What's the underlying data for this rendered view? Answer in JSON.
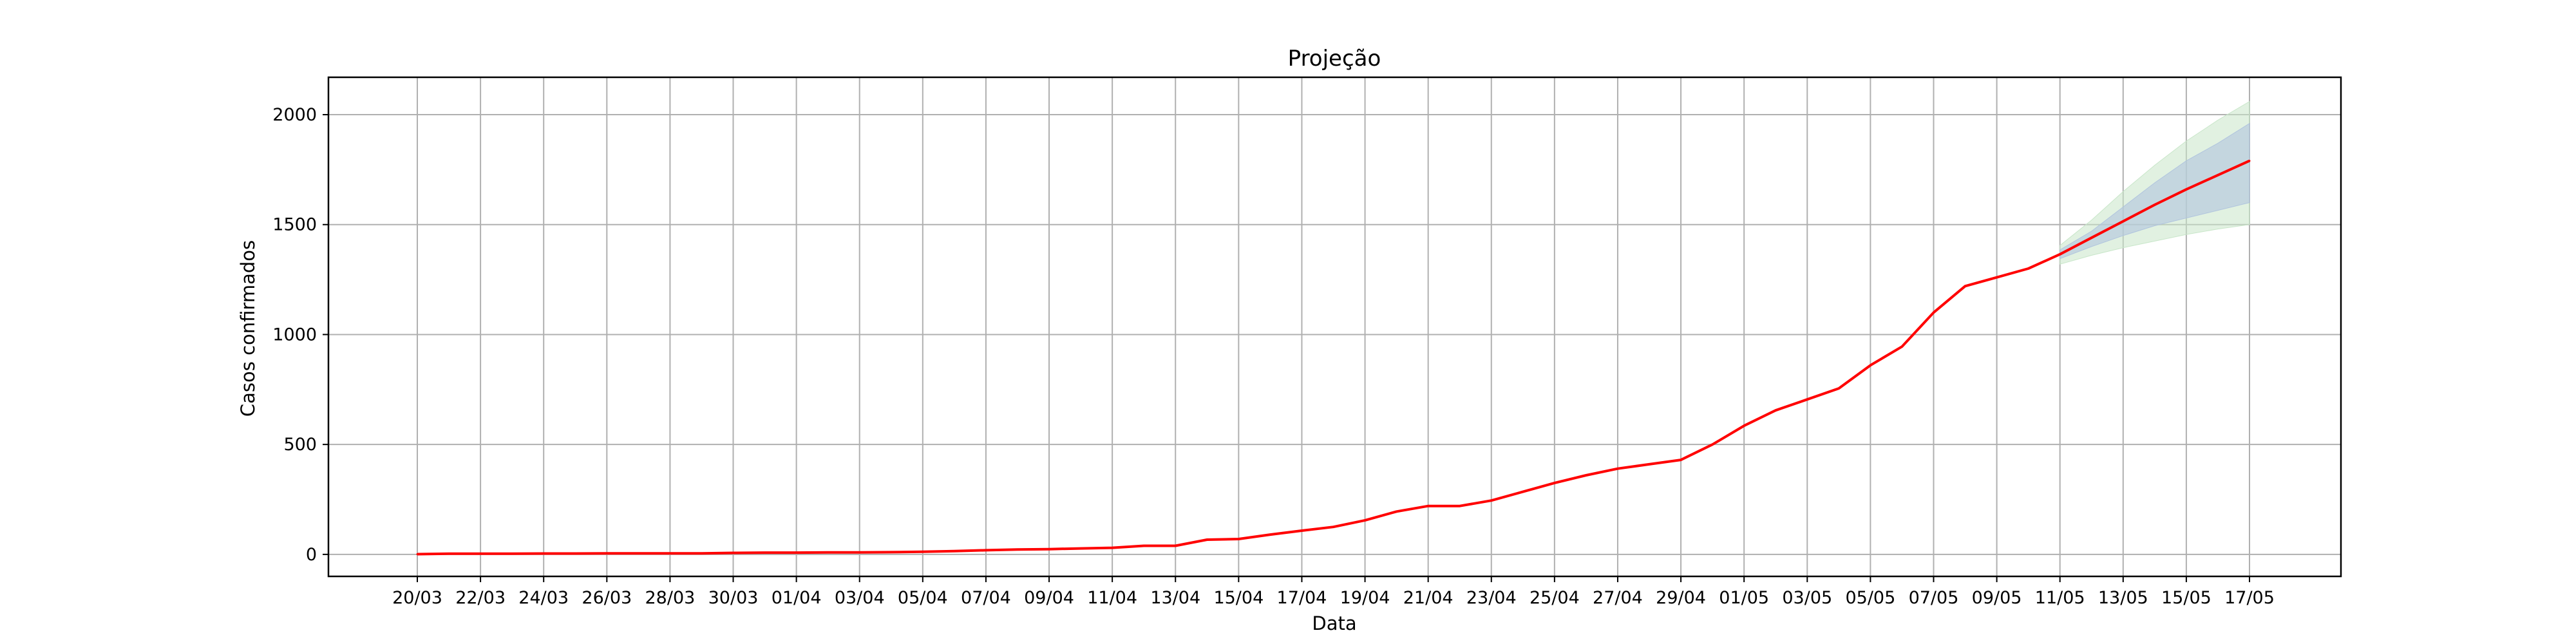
{
  "chart_data": {
    "type": "line",
    "title": "Projeção",
    "xlabel": "Data",
    "ylabel": "Casos confirmados",
    "ylim": [
      -100,
      2170
    ],
    "yticks": [
      0,
      500,
      1000,
      1500,
      2000
    ],
    "grid": true,
    "x": [
      "20/03",
      "21/03",
      "22/03",
      "23/03",
      "24/03",
      "25/03",
      "26/03",
      "27/03",
      "28/03",
      "29/03",
      "30/03",
      "31/03",
      "01/04",
      "02/04",
      "03/04",
      "04/04",
      "05/04",
      "06/04",
      "07/04",
      "08/04",
      "09/04",
      "10/04",
      "11/04",
      "12/04",
      "13/04",
      "14/04",
      "15/04",
      "16/04",
      "17/04",
      "18/04",
      "19/04",
      "20/04",
      "21/04",
      "22/04",
      "23/04",
      "24/04",
      "25/04",
      "26/04",
      "27/04",
      "28/04",
      "29/04",
      "30/04",
      "01/05",
      "02/05",
      "03/05",
      "04/05",
      "05/05",
      "06/05",
      "07/05",
      "08/05",
      "09/05",
      "10/05",
      "11/05",
      "12/05",
      "13/05",
      "14/05",
      "15/05",
      "16/05",
      "17/05"
    ],
    "tick_labels": [
      "20/03",
      "22/03",
      "24/03",
      "26/03",
      "28/03",
      "30/03",
      "01/04",
      "03/04",
      "05/04",
      "07/04",
      "09/04",
      "11/04",
      "13/04",
      "15/04",
      "17/04",
      "19/04",
      "21/04",
      "23/04",
      "25/04",
      "27/04",
      "29/04",
      "01/05",
      "03/05",
      "05/05",
      "07/05",
      "09/05",
      "11/05",
      "13/05",
      "15/05",
      "17/05"
    ],
    "series": [
      {
        "color": "#ff0000",
        "values": [
          1,
          3,
          3,
          3,
          4,
          4,
          5,
          5,
          5,
          5,
          7,
          8,
          8,
          9,
          9,
          10,
          12,
          15,
          19,
          22,
          24,
          27,
          30,
          39,
          39,
          67,
          70,
          90,
          108,
          125,
          155,
          195,
          220,
          220,
          245,
          285,
          325,
          360,
          390,
          410,
          430,
          500,
          585,
          655,
          705,
          755,
          860,
          945,
          1100,
          1220,
          1260,
          1300,
          1365,
          1440,
          1515,
          1590,
          1660,
          1725,
          1790
        ]
      }
    ],
    "confidence_bands": [
      {
        "level": "inner",
        "color": "#b0c4de",
        "x_start": "11/05",
        "lower": [
          1345,
          1400,
          1450,
          1495,
          1530,
          1565,
          1600
        ],
        "upper": [
          1385,
          1470,
          1580,
          1690,
          1790,
          1870,
          1960
        ]
      },
      {
        "level": "outer",
        "color": "#c8e6c9",
        "x_start": "11/05",
        "lower": [
          1320,
          1360,
          1395,
          1425,
          1455,
          1480,
          1500
        ],
        "upper": [
          1405,
          1520,
          1650,
          1770,
          1880,
          1975,
          2060
        ]
      }
    ]
  }
}
